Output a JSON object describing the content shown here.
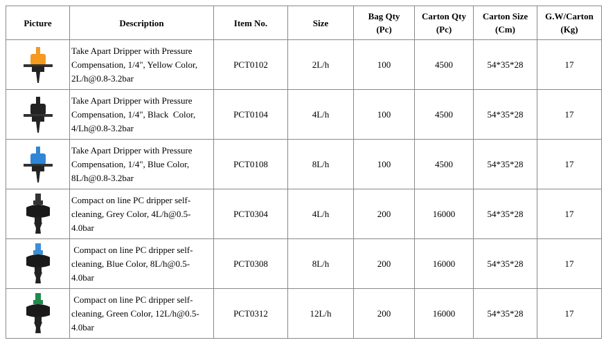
{
  "table": {
    "headers": [
      "Picture",
      "Description",
      "Item No.",
      "Size",
      "Bag Qty\n(Pc)",
      "Carton  Qty\n(Pc)",
      "Carton  Size\n(Cm)",
      "G.W/Carton\n(Kg)"
    ],
    "rows": [
      [
        "Take Apart Dripper with Pressure Compensation, 1/4\", Yellow Color, 2L/h@0.8-3.2bar",
        "PCT0102",
        "2L/h",
        "100",
        "4500",
        "54*35*28",
        "17"
      ],
      [
        "Take Apart Dripper with Pressure Compensation, 1/4\", Black  Color, 4/Lh@0.8-3.2bar",
        "PCT0104",
        "4L/h",
        "100",
        "4500",
        "54*35*28",
        "17"
      ],
      [
        "Take Apart Dripper with Pressure Compensation, 1/4\", Blue Color, 8L/h@0.8-3.2bar",
        "PCT0108",
        "8L/h",
        "100",
        "4500",
        "54*35*28",
        "17"
      ],
      [
        "Compact on line PC dripper self-cleaning, Grey Color, 4L/h@0.5-4.0bar",
        "PCT0304",
        "4L/h",
        "200",
        "16000",
        "54*35*28",
        "17"
      ],
      [
        " Compact on line PC dripper self-cleaning, Blue Color, 8L/h@0.5-4.0bar",
        "PCT0308",
        "8L/h",
        "200",
        "16000",
        "54*35*28",
        "17"
      ],
      [
        " Compact on line PC dripper self-cleaning, Green Color, 12L/h@0.5-4.0bar",
        "PCT0312",
        "12L/h",
        "200",
        "16000",
        "54*35*28",
        "17"
      ]
    ]
  }
}
